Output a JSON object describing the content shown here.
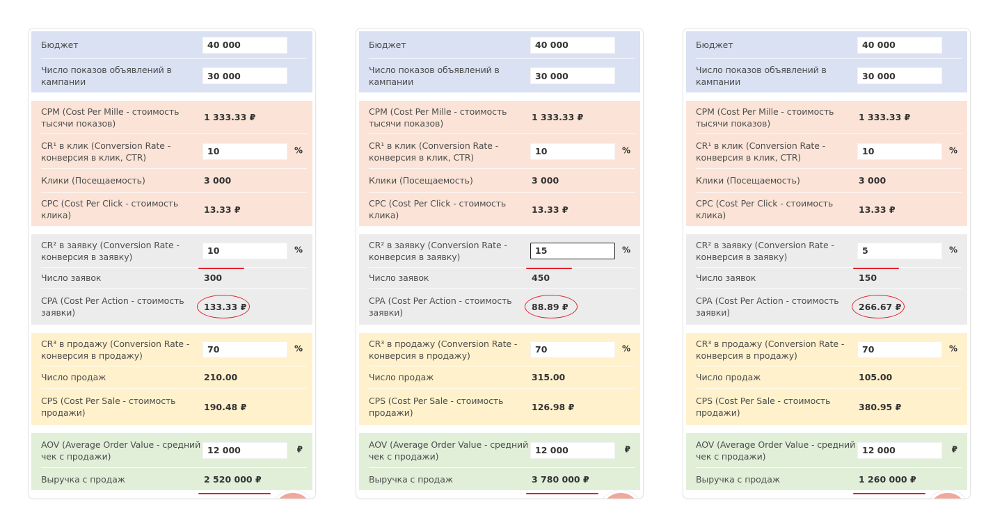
{
  "units": {
    "percent": "%",
    "ruble": "₽"
  },
  "panels": [
    {
      "budget": {
        "label": "Бюджет",
        "value": "40 000"
      },
      "impressions": {
        "label": "Число показов объявлений в кампании",
        "value": "30 000"
      },
      "cpm": {
        "label": "CPM (Cost Per Mille - стоимость тысячи показов)",
        "value": "1 333.33 ₽"
      },
      "cr1": {
        "label": "CR¹ в клик (Conversion Rate - конверсия в клик, CTR)",
        "value": "10"
      },
      "clicks": {
        "label": "Клики (Посещаемость)",
        "value": "3 000"
      },
      "cpc": {
        "label": "CPC (Cost Per Click - стоимость клика)",
        "value": "13.33 ₽"
      },
      "cr2": {
        "label": "CR² в заявку (Conversion Rate - конверсия в заявку)",
        "value": "10"
      },
      "leads": {
        "label": "Число заявок",
        "value": "300"
      },
      "cpa": {
        "label": "CPA (Cost Per Action - стоимость заявки)",
        "value": "133.33 ₽"
      },
      "cr3": {
        "label": "CR³ в продажу (Conversion Rate - конверсия в продажу)",
        "value": "70"
      },
      "sales": {
        "label": "Число продаж",
        "value": "210.00"
      },
      "cps": {
        "label": "CPS (Cost Per Sale - стоимость продажи)",
        "value": "190.48 ₽"
      },
      "aov": {
        "label": "AOV (Average Order Value - средний чек с продажи)",
        "value": "12 000"
      },
      "revenue": {
        "label": "Выручка с продаж",
        "value": "2 520 000 ₽"
      }
    },
    {
      "budget": {
        "label": "Бюджет",
        "value": "40 000"
      },
      "impressions": {
        "label": "Число показов объявлений в кампании",
        "value": "30 000"
      },
      "cpm": {
        "label": "CPM (Cost Per Mille - стоимость тысячи показов)",
        "value": "1 333.33 ₽"
      },
      "cr1": {
        "label": "CR¹ в клик (Conversion Rate - конверсия в клик, CTR)",
        "value": "10"
      },
      "clicks": {
        "label": "Клики (Посещаемость)",
        "value": "3 000"
      },
      "cpc": {
        "label": "CPC (Cost Per Click - стоимость клика)",
        "value": "13.33 ₽"
      },
      "cr2": {
        "label": "CR² в заявку (Conversion Rate - конверсия в заявку)",
        "value": "15"
      },
      "leads": {
        "label": "Число заявок",
        "value": "450"
      },
      "cpa": {
        "label": "CPA (Cost Per Action - стоимость заявки)",
        "value": "88.89 ₽"
      },
      "cr3": {
        "label": "CR³ в продажу (Conversion Rate - конверсия в продажу)",
        "value": "70"
      },
      "sales": {
        "label": "Число продаж",
        "value": "315.00"
      },
      "cps": {
        "label": "CPS (Cost Per Sale - стоимость продажи)",
        "value": "126.98 ₽"
      },
      "aov": {
        "label": "AOV (Average Order Value - средний чек с продажи)",
        "value": "12 000"
      },
      "revenue": {
        "label": "Выручка с продаж",
        "value": "3 780 000 ₽"
      }
    },
    {
      "budget": {
        "label": "Бюджет",
        "value": "40 000"
      },
      "impressions": {
        "label": "Число показов объявлений в кампании",
        "value": "30 000"
      },
      "cpm": {
        "label": "CPM (Cost Per Mille - стоимость тысячи показов)",
        "value": "1 333.33 ₽"
      },
      "cr1": {
        "label": "CR¹ в клик (Conversion Rate - конверсия в клик, CTR)",
        "value": "10"
      },
      "clicks": {
        "label": "Клики (Посещаемость)",
        "value": "3 000"
      },
      "cpc": {
        "label": "CPC (Cost Per Click - стоимость клика)",
        "value": "13.33 ₽"
      },
      "cr2": {
        "label": "CR² в заявку (Conversion Rate - конверсия в заявку)",
        "value": "5"
      },
      "leads": {
        "label": "Число заявок",
        "value": "150"
      },
      "cpa": {
        "label": "CPA (Cost Per Action - стоимость заявки)",
        "value": "266.67 ₽"
      },
      "cr3": {
        "label": "CR³ в продажу (Conversion Rate - конверсия в продажу)",
        "value": "70"
      },
      "sales": {
        "label": "Число продаж",
        "value": "105.00"
      },
      "cps": {
        "label": "CPS (Cost Per Sale - стоимость продажи)",
        "value": "380.95 ₽"
      },
      "aov": {
        "label": "AOV (Average Order Value - средний чек с продажи)",
        "value": "12 000"
      },
      "revenue": {
        "label": "Выручка с продаж",
        "value": "1 260 000 ₽"
      }
    }
  ]
}
